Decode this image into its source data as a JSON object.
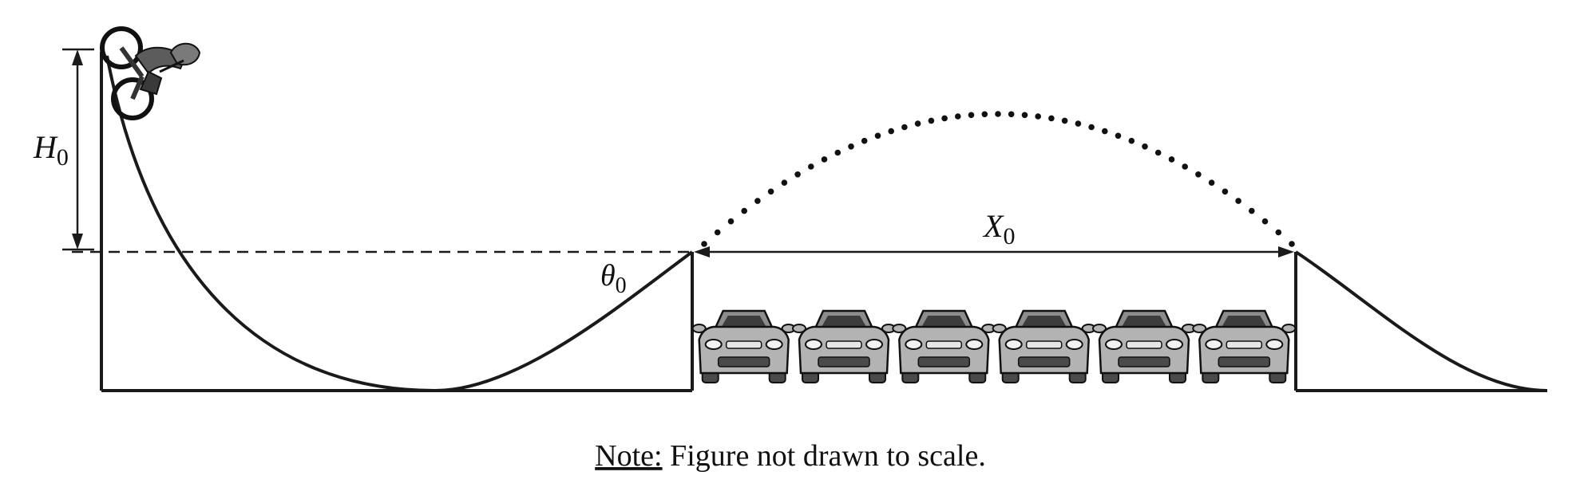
{
  "labels": {
    "H": "H",
    "H_sub": "0",
    "X": "X",
    "X_sub": "0",
    "theta": "θ",
    "theta_sub": "0"
  },
  "note": {
    "label": "Note:",
    "text": " Figure not drawn to scale."
  },
  "cars": {
    "count": 6
  },
  "colors": {
    "line": "#1a1a1a",
    "car_body": "#b3b3b3",
    "car_dark": "#4a4a4a",
    "car_roof": "#8c8c8c"
  }
}
